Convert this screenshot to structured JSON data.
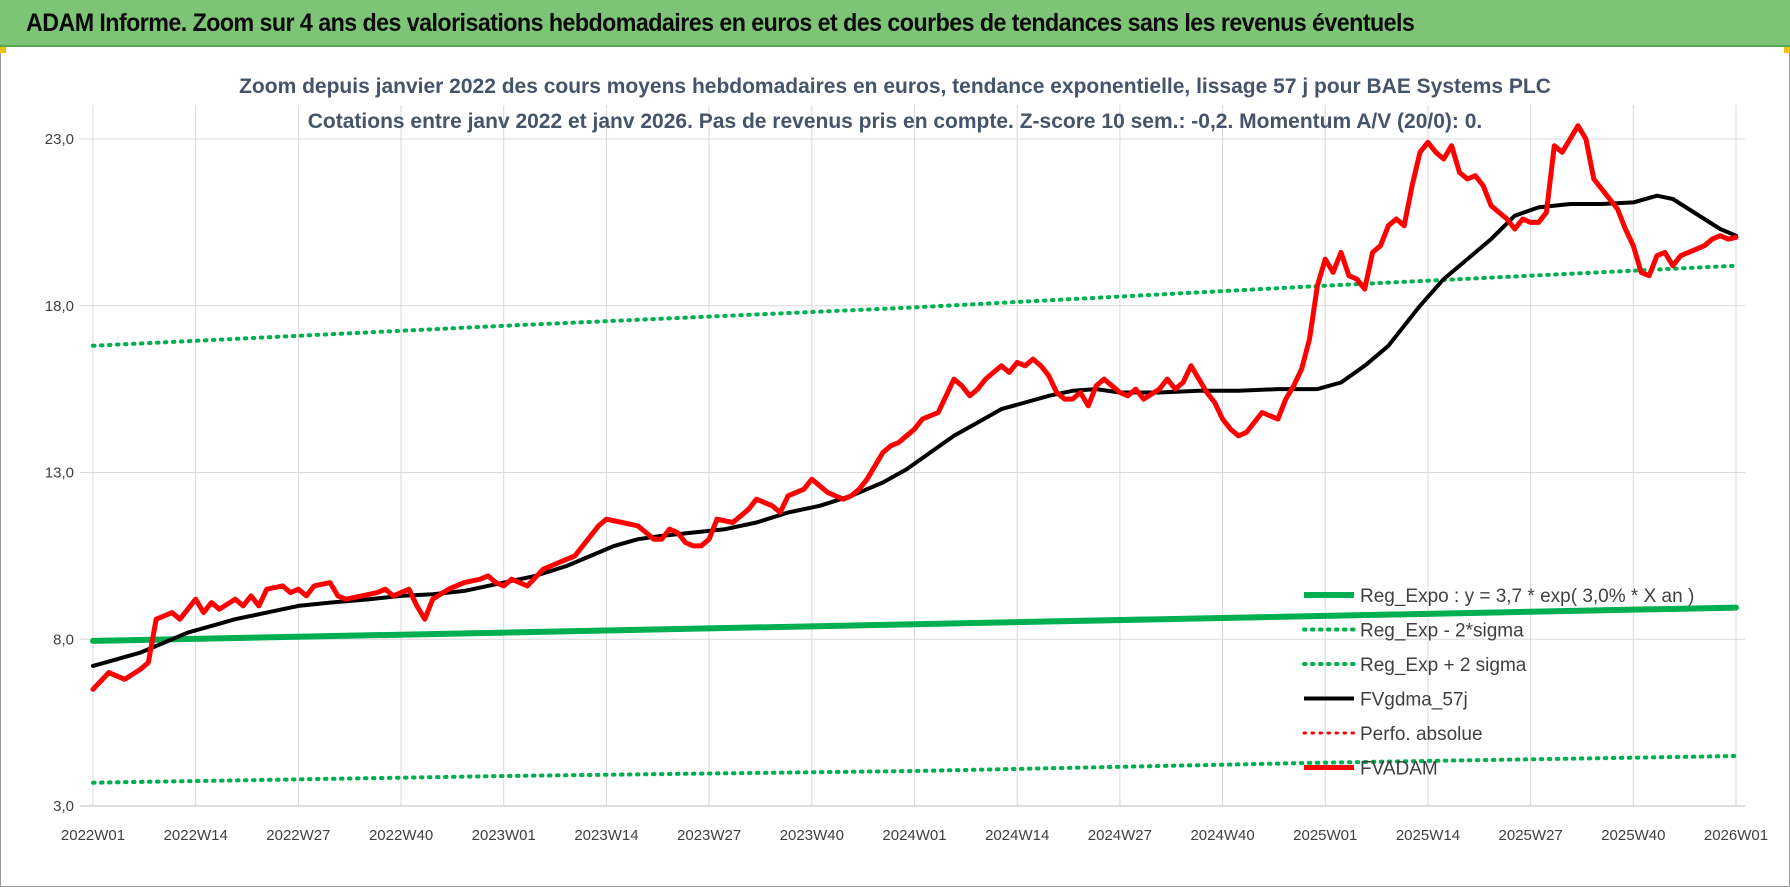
{
  "banner": {
    "title": "ADAM Informe. Zoom sur 4 ans des valorisations hebdomadaires en euros et des courbes de tendances sans les revenus éventuels",
    "color": "#7dc476"
  },
  "chart_data": {
    "type": "line",
    "title": "Zoom depuis janvier 2022 des cours moyens hebdomadaires en euros, tendance exponentielle, lissage 57 j pour BAE Systems PLC",
    "subtitle": "Cotations entre janv 2022 et janv 2026. Pas de revenus pris en compte. Z-score 10 sem.: -0,2. Momentum A/V (20/0): 0.",
    "xlabel": "",
    "ylabel": "",
    "ylim": [
      3,
      24
    ],
    "y_ticks": [
      "3,0",
      "8,0",
      "13,0",
      "18,0",
      "23,0"
    ],
    "y_tick_values": [
      3,
      8,
      13,
      18,
      23
    ],
    "x_range": [
      0,
      208
    ],
    "x_ticks": [
      "2022W01",
      "2022W14",
      "2022W27",
      "2022W40",
      "2023W01",
      "2023W14",
      "2023W27",
      "2023W40",
      "2024W01",
      "2024W14",
      "2024W27",
      "2024W40",
      "2025W01",
      "2025W14",
      "2025W27",
      "2025W40",
      "2026W01"
    ],
    "x_tick_weeks": [
      0,
      13,
      26,
      39,
      52,
      65,
      78,
      91,
      104,
      117,
      130,
      143,
      156,
      169,
      182,
      195,
      208
    ],
    "grid": true,
    "legend_position": "bottom-right",
    "series": [
      {
        "name": "Reg_Expo : y = 3,7 * exp( 3,0% *  X  an )",
        "color": "#00b050",
        "style": "solid",
        "width": 6,
        "points": [
          [
            0,
            7.95
          ],
          [
            52,
            8.2
          ],
          [
            104,
            8.45
          ],
          [
            156,
            8.7
          ],
          [
            208,
            8.95
          ]
        ]
      },
      {
        "name": "Reg_Exp - 2*sigma",
        "color": "#00b050",
        "style": "dotted",
        "width": 4,
        "points": [
          [
            0,
            3.7
          ],
          [
            52,
            3.9
          ],
          [
            104,
            4.05
          ],
          [
            156,
            4.3
          ],
          [
            208,
            4.5
          ]
        ]
      },
      {
        "name": "Reg_Exp + 2 sigma",
        "color": "#00b050",
        "style": "dotted",
        "width": 4,
        "points": [
          [
            0,
            16.8
          ],
          [
            52,
            17.4
          ],
          [
            104,
            17.95
          ],
          [
            156,
            18.6
          ],
          [
            208,
            19.2
          ]
        ]
      },
      {
        "name": "FVgdma_57j",
        "color": "#000000",
        "style": "solid",
        "width": 4,
        "points": [
          [
            0,
            7.2
          ],
          [
            3,
            7.4
          ],
          [
            6,
            7.6
          ],
          [
            9,
            7.9
          ],
          [
            12,
            8.2
          ],
          [
            15,
            8.4
          ],
          [
            18,
            8.6
          ],
          [
            22,
            8.8
          ],
          [
            26,
            9.0
          ],
          [
            30,
            9.1
          ],
          [
            35,
            9.2
          ],
          [
            39,
            9.3
          ],
          [
            43,
            9.35
          ],
          [
            47,
            9.45
          ],
          [
            52,
            9.7
          ],
          [
            56,
            9.9
          ],
          [
            60,
            10.2
          ],
          [
            63,
            10.5
          ],
          [
            66,
            10.8
          ],
          [
            69,
            11.0
          ],
          [
            72,
            11.1
          ],
          [
            76,
            11.2
          ],
          [
            80,
            11.3
          ],
          [
            84,
            11.5
          ],
          [
            88,
            11.8
          ],
          [
            92,
            12.0
          ],
          [
            96,
            12.3
          ],
          [
            100,
            12.7
          ],
          [
            103,
            13.1
          ],
          [
            106,
            13.6
          ],
          [
            109,
            14.1
          ],
          [
            112,
            14.5
          ],
          [
            115,
            14.9
          ],
          [
            118,
            15.1
          ],
          [
            121,
            15.3
          ],
          [
            124,
            15.45
          ],
          [
            127,
            15.5
          ],
          [
            130,
            15.4
          ],
          [
            135,
            15.4
          ],
          [
            140,
            15.45
          ],
          [
            145,
            15.45
          ],
          [
            150,
            15.5
          ],
          [
            155,
            15.5
          ],
          [
            158,
            15.7
          ],
          [
            161,
            16.2
          ],
          [
            164,
            16.8
          ],
          [
            166,
            17.4
          ],
          [
            168,
            18.0
          ],
          [
            171,
            18.8
          ],
          [
            174,
            19.4
          ],
          [
            177,
            20.0
          ],
          [
            180,
            20.7
          ],
          [
            183,
            20.95
          ],
          [
            187,
            21.05
          ],
          [
            191,
            21.05
          ],
          [
            195,
            21.1
          ],
          [
            198,
            21.3
          ],
          [
            200,
            21.2
          ],
          [
            202,
            20.9
          ],
          [
            204,
            20.6
          ],
          [
            206,
            20.3
          ],
          [
            208,
            20.1
          ]
        ]
      },
      {
        "name": "Perfo. absolue",
        "color": "#ff0000",
        "style": "dotted",
        "width": 3,
        "points": []
      },
      {
        "name": "FVADAM",
        "color": "#ff0000",
        "style": "solid",
        "width": 5,
        "points": [
          [
            0,
            6.5
          ],
          [
            2,
            7.0
          ],
          [
            4,
            6.8
          ],
          [
            6,
            7.1
          ],
          [
            7,
            7.3
          ],
          [
            8,
            8.6
          ],
          [
            9,
            8.7
          ],
          [
            10,
            8.8
          ],
          [
            11,
            8.6
          ],
          [
            12,
            8.9
          ],
          [
            13,
            9.2
          ],
          [
            14,
            8.8
          ],
          [
            15,
            9.1
          ],
          [
            16,
            8.9
          ],
          [
            18,
            9.2
          ],
          [
            19,
            9.0
          ],
          [
            20,
            9.3
          ],
          [
            21,
            9.0
          ],
          [
            22,
            9.5
          ],
          [
            24,
            9.6
          ],
          [
            25,
            9.4
          ],
          [
            26,
            9.5
          ],
          [
            27,
            9.3
          ],
          [
            28,
            9.6
          ],
          [
            30,
            9.7
          ],
          [
            31,
            9.3
          ],
          [
            32,
            9.2
          ],
          [
            34,
            9.3
          ],
          [
            36,
            9.4
          ],
          [
            37,
            9.5
          ],
          [
            38,
            9.3
          ],
          [
            40,
            9.5
          ],
          [
            41,
            9.0
          ],
          [
            42,
            8.6
          ],
          [
            43,
            9.2
          ],
          [
            45,
            9.5
          ],
          [
            47,
            9.7
          ],
          [
            49,
            9.8
          ],
          [
            50,
            9.9
          ],
          [
            51,
            9.7
          ],
          [
            52,
            9.6
          ],
          [
            53,
            9.8
          ],
          [
            55,
            9.6
          ],
          [
            57,
            10.1
          ],
          [
            59,
            10.3
          ],
          [
            61,
            10.5
          ],
          [
            62,
            10.8
          ],
          [
            63,
            11.1
          ],
          [
            64,
            11.4
          ],
          [
            65,
            11.6
          ],
          [
            67,
            11.5
          ],
          [
            69,
            11.4
          ],
          [
            70,
            11.2
          ],
          [
            71,
            11.0
          ],
          [
            72,
            11.0
          ],
          [
            73,
            11.3
          ],
          [
            74,
            11.2
          ],
          [
            75,
            10.9
          ],
          [
            76,
            10.8
          ],
          [
            77,
            10.8
          ],
          [
            78,
            11.0
          ],
          [
            79,
            11.6
          ],
          [
            81,
            11.5
          ],
          [
            82,
            11.7
          ],
          [
            83,
            11.9
          ],
          [
            84,
            12.2
          ],
          [
            86,
            12.0
          ],
          [
            87,
            11.8
          ],
          [
            88,
            12.3
          ],
          [
            90,
            12.5
          ],
          [
            91,
            12.8
          ],
          [
            92,
            12.6
          ],
          [
            93,
            12.4
          ],
          [
            94,
            12.3
          ],
          [
            95,
            12.2
          ],
          [
            96,
            12.3
          ],
          [
            97,
            12.5
          ],
          [
            98,
            12.8
          ],
          [
            99,
            13.2
          ],
          [
            100,
            13.6
          ],
          [
            101,
            13.8
          ],
          [
            102,
            13.9
          ],
          [
            103,
            14.1
          ],
          [
            104,
            14.3
          ],
          [
            105,
            14.6
          ],
          [
            107,
            14.8
          ],
          [
            108,
            15.3
          ],
          [
            109,
            15.8
          ],
          [
            110,
            15.6
          ],
          [
            111,
            15.3
          ],
          [
            112,
            15.5
          ],
          [
            113,
            15.8
          ],
          [
            114,
            16.0
          ],
          [
            115,
            16.2
          ],
          [
            116,
            16.0
          ],
          [
            117,
            16.3
          ],
          [
            118,
            16.2
          ],
          [
            119,
            16.4
          ],
          [
            120,
            16.2
          ],
          [
            121,
            15.9
          ],
          [
            122,
            15.4
          ],
          [
            123,
            15.2
          ],
          [
            124,
            15.2
          ],
          [
            125,
            15.4
          ],
          [
            126,
            15.0
          ],
          [
            127,
            15.6
          ],
          [
            128,
            15.8
          ],
          [
            129,
            15.6
          ],
          [
            130,
            15.4
          ],
          [
            131,
            15.3
          ],
          [
            132,
            15.5
          ],
          [
            133,
            15.2
          ],
          [
            135,
            15.5
          ],
          [
            136,
            15.8
          ],
          [
            137,
            15.5
          ],
          [
            138,
            15.7
          ],
          [
            139,
            16.2
          ],
          [
            140,
            15.8
          ],
          [
            141,
            15.4
          ],
          [
            142,
            15.1
          ],
          [
            143,
            14.6
          ],
          [
            144,
            14.3
          ],
          [
            145,
            14.1
          ],
          [
            146,
            14.2
          ],
          [
            147,
            14.5
          ],
          [
            148,
            14.8
          ],
          [
            149,
            14.7
          ],
          [
            150,
            14.6
          ],
          [
            151,
            15.2
          ],
          [
            152,
            15.6
          ],
          [
            153,
            16.1
          ],
          [
            154,
            17.0
          ],
          [
            155,
            18.6
          ],
          [
            156,
            19.4
          ],
          [
            157,
            19.0
          ],
          [
            158,
            19.6
          ],
          [
            159,
            18.9
          ],
          [
            160,
            18.8
          ],
          [
            161,
            18.5
          ],
          [
            162,
            19.6
          ],
          [
            163,
            19.8
          ],
          [
            164,
            20.4
          ],
          [
            165,
            20.6
          ],
          [
            166,
            20.4
          ],
          [
            167,
            21.6
          ],
          [
            168,
            22.6
          ],
          [
            169,
            22.9
          ],
          [
            170,
            22.6
          ],
          [
            171,
            22.4
          ],
          [
            172,
            22.8
          ],
          [
            173,
            22.0
          ],
          [
            174,
            21.8
          ],
          [
            175,
            21.9
          ],
          [
            176,
            21.6
          ],
          [
            177,
            21.0
          ],
          [
            178,
            20.8
          ],
          [
            179,
            20.6
          ],
          [
            180,
            20.3
          ],
          [
            181,
            20.6
          ],
          [
            182,
            20.5
          ],
          [
            183,
            20.5
          ],
          [
            184,
            20.8
          ],
          [
            185,
            22.8
          ],
          [
            186,
            22.6
          ],
          [
            187,
            23.0
          ],
          [
            188,
            23.4
          ],
          [
            189,
            23.0
          ],
          [
            190,
            21.8
          ],
          [
            191,
            21.5
          ],
          [
            192,
            21.2
          ],
          [
            193,
            20.9
          ],
          [
            194,
            20.3
          ],
          [
            195,
            19.8
          ],
          [
            196,
            19.0
          ],
          [
            197,
            18.9
          ],
          [
            198,
            19.5
          ],
          [
            199,
            19.6
          ],
          [
            200,
            19.2
          ],
          [
            201,
            19.5
          ],
          [
            202,
            19.6
          ],
          [
            203,
            19.7
          ],
          [
            204,
            19.8
          ],
          [
            205,
            20.0
          ],
          [
            206,
            20.1
          ],
          [
            207,
            20.0
          ],
          [
            208,
            20.05
          ]
        ]
      }
    ]
  }
}
